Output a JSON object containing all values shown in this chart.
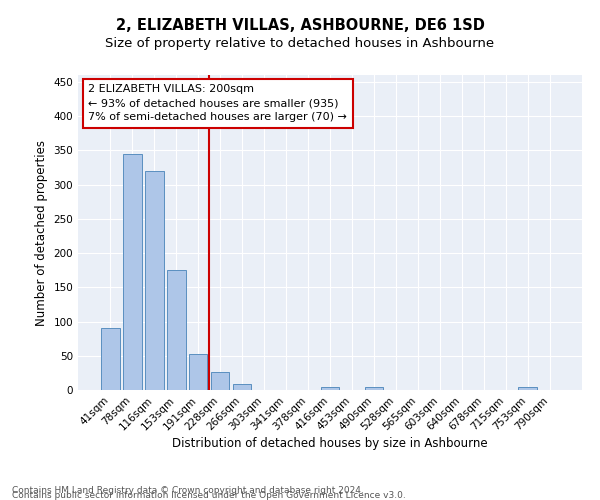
{
  "title": "2, ELIZABETH VILLAS, ASHBOURNE, DE6 1SD",
  "subtitle": "Size of property relative to detached houses in Ashbourne",
  "xlabel": "Distribution of detached houses by size in Ashbourne",
  "ylabel": "Number of detached properties",
  "bar_labels": [
    "41sqm",
    "78sqm",
    "116sqm",
    "153sqm",
    "191sqm",
    "228sqm",
    "266sqm",
    "303sqm",
    "341sqm",
    "378sqm",
    "416sqm",
    "453sqm",
    "490sqm",
    "528sqm",
    "565sqm",
    "603sqm",
    "640sqm",
    "678sqm",
    "715sqm",
    "753sqm",
    "790sqm"
  ],
  "bar_values": [
    90,
    345,
    320,
    175,
    53,
    26,
    9,
    0,
    0,
    0,
    5,
    0,
    5,
    0,
    0,
    0,
    0,
    0,
    0,
    4,
    0
  ],
  "bar_color": "#aec6e8",
  "bar_edge_color": "#5a8fc0",
  "vline_x": 4.5,
  "vline_color": "#cc0000",
  "annotation_line1": "2 ELIZABETH VILLAS: 200sqm",
  "annotation_line2": "← 93% of detached houses are smaller (935)",
  "annotation_line3": "7% of semi-detached houses are larger (70) →",
  "annotation_box_color": "#cc0000",
  "ylim": [
    0,
    460
  ],
  "yticks": [
    0,
    50,
    100,
    150,
    200,
    250,
    300,
    350,
    400,
    450
  ],
  "bg_color": "#eaeff7",
  "footer_line1": "Contains HM Land Registry data © Crown copyright and database right 2024.",
  "footer_line2": "Contains public sector information licensed under the Open Government Licence v3.0.",
  "title_fontsize": 10.5,
  "subtitle_fontsize": 9.5,
  "axis_label_fontsize": 8.5,
  "tick_fontsize": 7.5,
  "annotation_fontsize": 8,
  "footer_fontsize": 6.5
}
